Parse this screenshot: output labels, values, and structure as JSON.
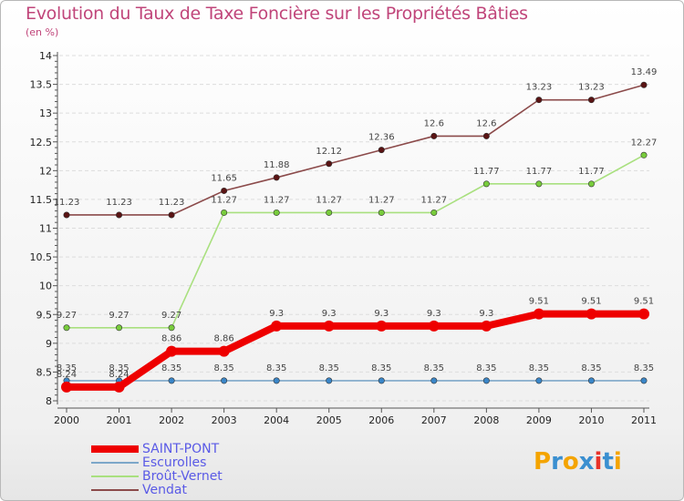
{
  "title": "Evolution du Taux de Taxe Foncière sur les Propriétés Bâties",
  "unit": "(en %)",
  "logo": {
    "text": "Proxiti",
    "colors": [
      "#f4a400",
      "#3a8fd0",
      "#f4a400",
      "#3a8fd0",
      "#e8332a",
      "#3a8fd0",
      "#f4a400"
    ]
  },
  "chart_data": {
    "type": "line",
    "title": "Evolution du Taux de Taxe Foncière sur les Propriétés Bâties",
    "ylabel": "(en %)",
    "xlabel": "",
    "ylim": [
      8,
      14
    ],
    "yticks": [
      "8",
      "8.5",
      "9",
      "9.5",
      "10",
      "10.5",
      "11",
      "11.5",
      "12",
      "12.5",
      "13",
      "13.5",
      "14"
    ],
    "x": [
      "2000",
      "2001",
      "2002",
      "2003",
      "2004",
      "2005",
      "2006",
      "2007",
      "2008",
      "2009",
      "2010",
      "2011"
    ],
    "series": [
      {
        "name": "SAINT-PONT",
        "color": "#ee0000",
        "marker": "#ee0000",
        "values": [
          8.24,
          8.24,
          8.86,
          8.86,
          9.3,
          9.3,
          9.3,
          9.3,
          9.3,
          9.51,
          9.51,
          9.51
        ],
        "labels": [
          "8.24",
          "8.24",
          "8.86",
          "8.86",
          "9.3",
          "9.3",
          "9.3",
          "9.3",
          "9.3",
          "9.51",
          "9.51",
          "9.51"
        ]
      },
      {
        "name": "Escurolles",
        "color": "#7da7c9",
        "marker": "#3a86c8",
        "values": [
          8.35,
          8.35,
          8.35,
          8.35,
          8.35,
          8.35,
          8.35,
          8.35,
          8.35,
          8.35,
          8.35,
          8.35
        ],
        "labels": [
          "8.35",
          "8.35",
          "8.35",
          "8.35",
          "8.35",
          "8.35",
          "8.35",
          "8.35",
          "8.35",
          "8.35",
          "8.35",
          "8.35"
        ]
      },
      {
        "name": "Broût-Vernet",
        "color": "#a9e07f",
        "marker": "#78cc3c",
        "values": [
          9.27,
          9.27,
          9.27,
          11.27,
          11.27,
          11.27,
          11.27,
          11.27,
          11.77,
          11.77,
          11.77,
          12.27
        ],
        "labels": [
          "9.27",
          "9.27",
          "9.27",
          "11.27",
          "11.27",
          "11.27",
          "11.27",
          "11.27",
          "11.77",
          "11.77",
          "11.77",
          "12.27"
        ]
      },
      {
        "name": "Vendat",
        "color": "#8b4a4a",
        "marker": "#5a1414",
        "values": [
          11.23,
          11.23,
          11.23,
          11.65,
          11.88,
          12.12,
          12.36,
          12.6,
          12.6,
          13.23,
          13.23,
          13.49
        ],
        "labels": [
          "11.23",
          "11.23",
          "11.23",
          "11.65",
          "11.88",
          "12.12",
          "12.36",
          "12.6",
          "12.6",
          "13.23",
          "13.23",
          "13.49"
        ]
      }
    ],
    "legend": [
      {
        "name": "SAINT-PONT",
        "color": "#ee0000",
        "text_color": "#5a5ae6"
      },
      {
        "name": "Escurolles",
        "color": "#7da7c9",
        "text_color": "#5a5ae6"
      },
      {
        "name": "Broût-Vernet",
        "color": "#a9e07f",
        "text_color": "#5a5ae6"
      },
      {
        "name": "Vendat",
        "color": "#8b4a4a",
        "text_color": "#5a5ae6"
      }
    ],
    "legend_position": "bottom-left"
  }
}
